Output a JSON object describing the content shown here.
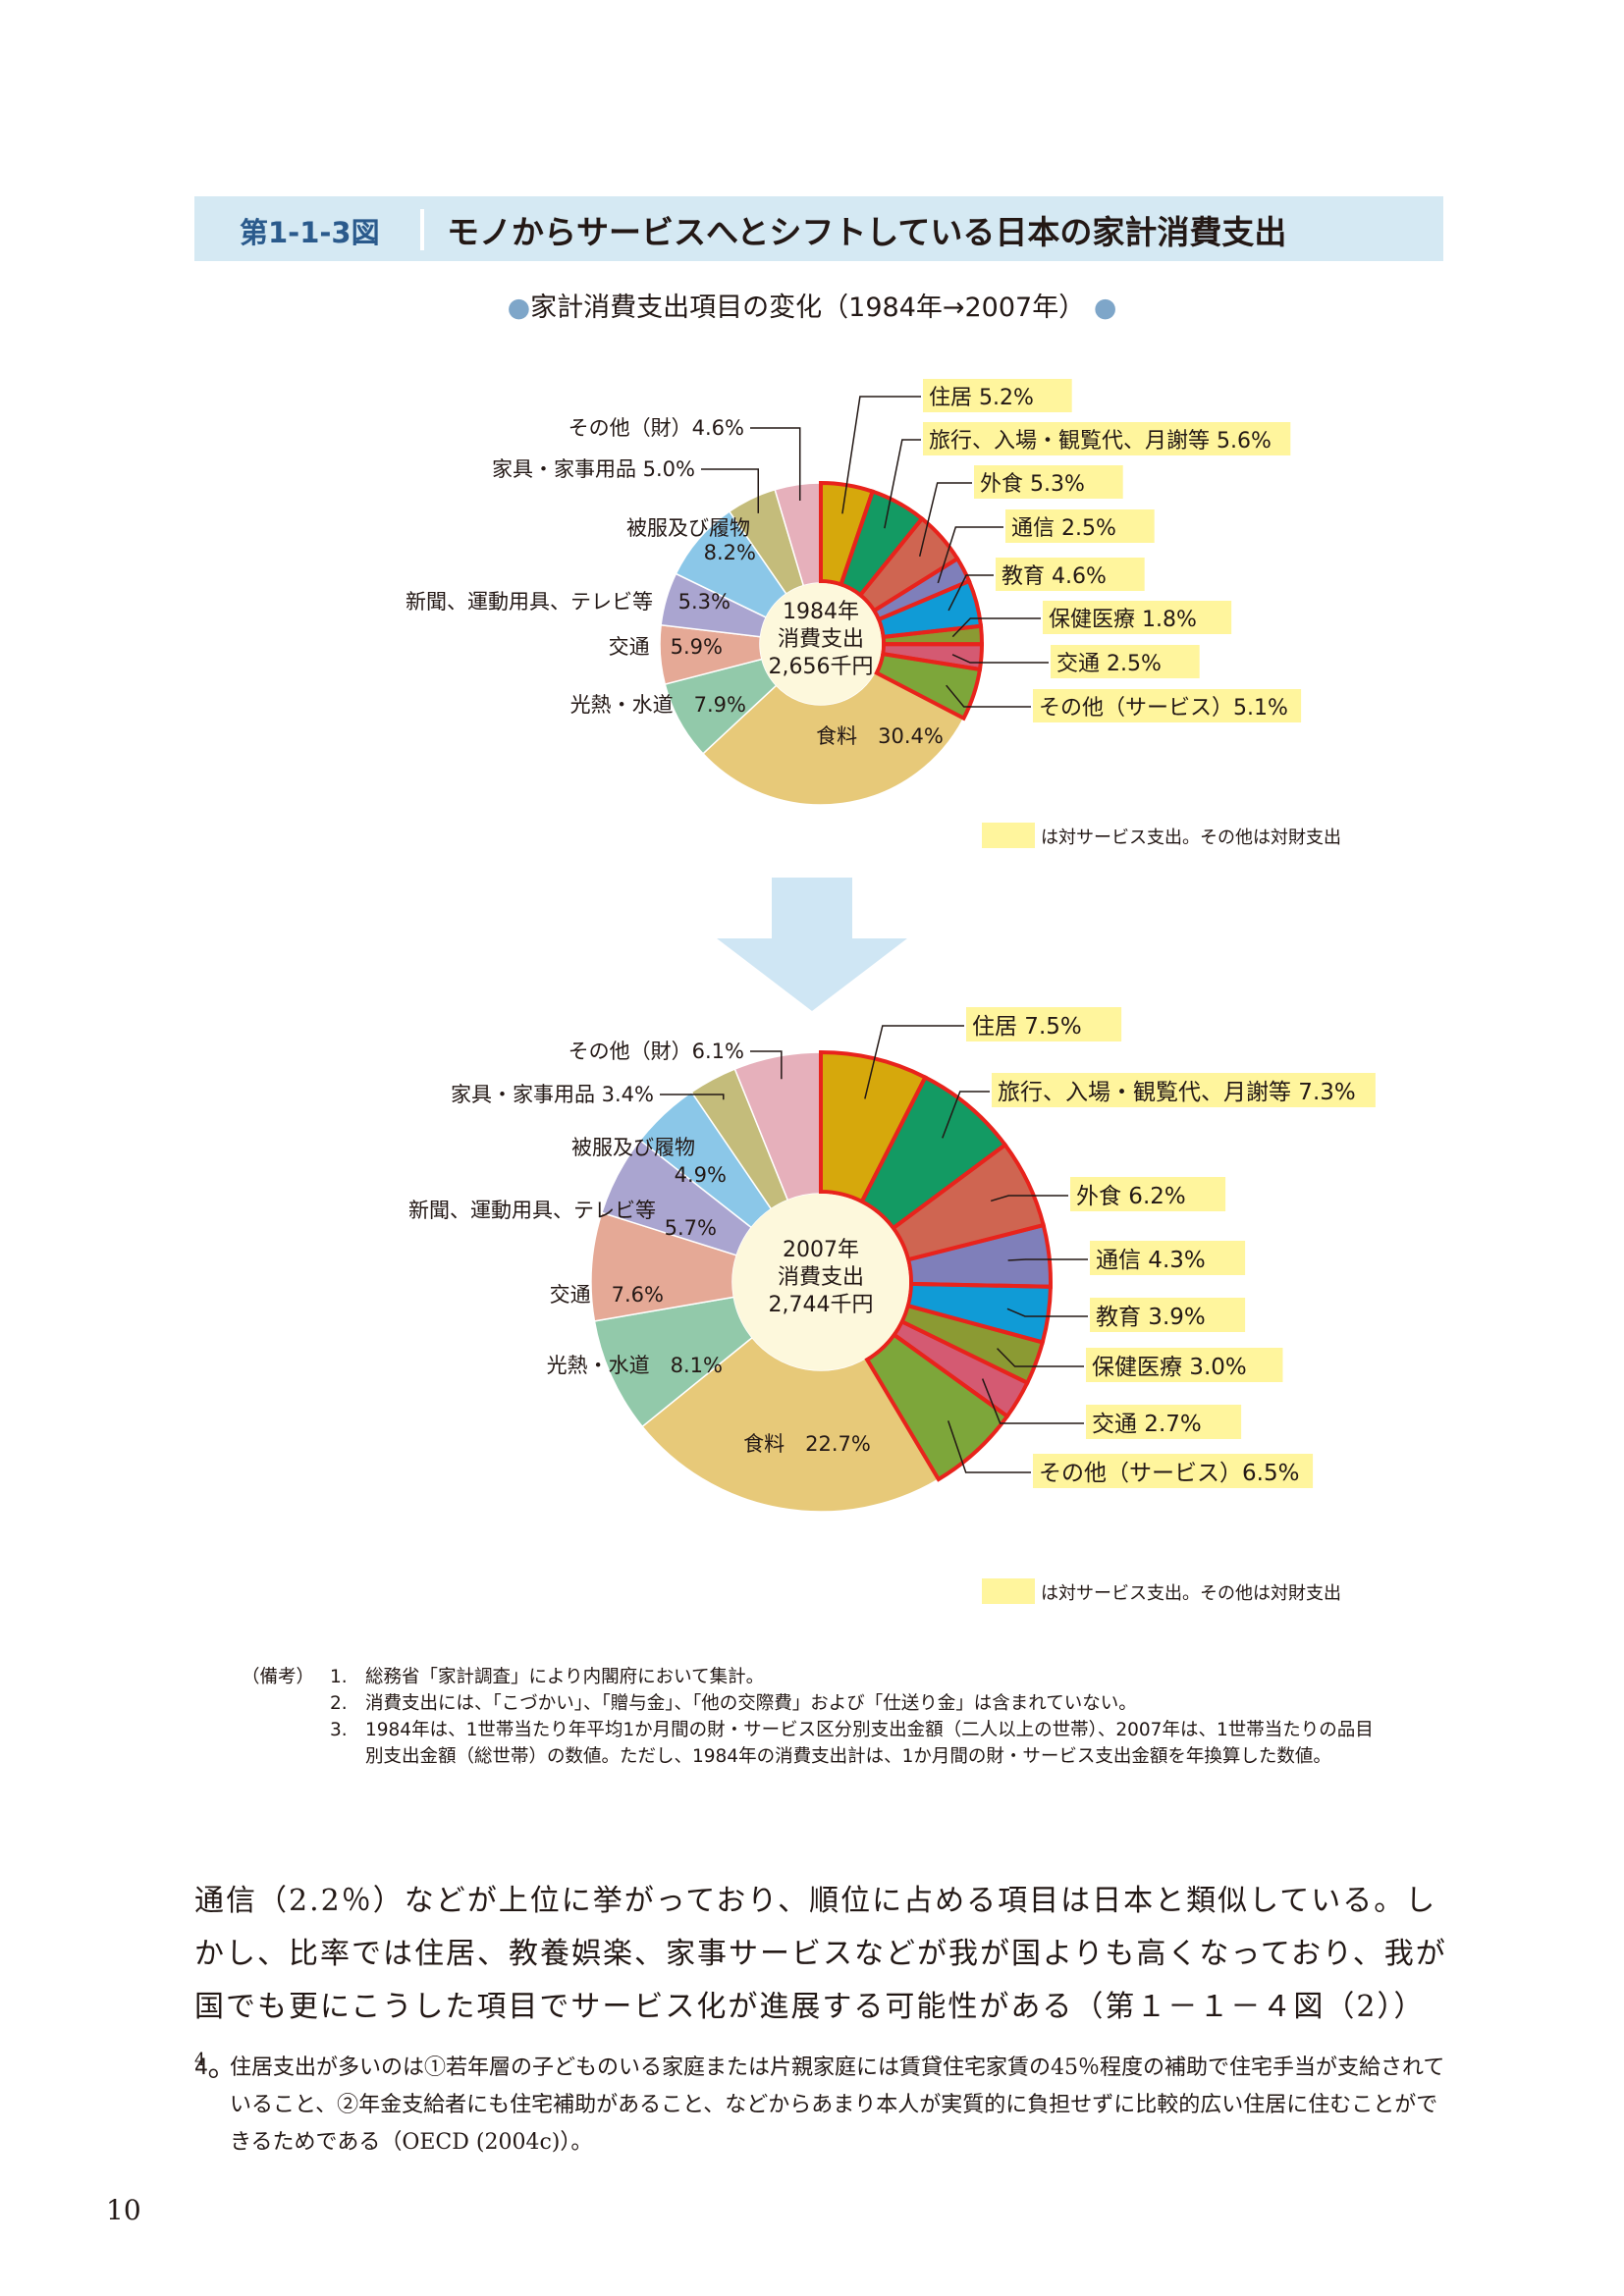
{
  "figure": {
    "label": "第1-1-3図",
    "title": "モノからサービスへとシフトしている日本の家計消費支出",
    "subtitle": "家計消費支出項目の変化（1984年→2007年）"
  },
  "legend_note": "は対サービス支出。その他は対財支出",
  "colors": {
    "service_highlight": "#fff59d",
    "service_border": "#e8231c",
    "header_band": "#d5e9f3",
    "arrow": "#cfe6f4"
  },
  "chart_data": [
    {
      "type": "pie",
      "center_label": [
        "1984年",
        "消費支出",
        "2,656千円"
      ],
      "categories": [
        "住居",
        "旅行、入場・観覧代、月謝等",
        "外食",
        "通信",
        "教育",
        "保健医療",
        "交通",
        "その他（サービス）",
        "食料",
        "光熱・水道",
        "交通",
        "新聞、運動用具、テレビ等",
        "被服及び履物",
        "家具・家事用品",
        "その他（財）"
      ],
      "values": [
        5.2,
        5.6,
        5.3,
        2.5,
        4.6,
        1.8,
        2.5,
        5.1,
        30.4,
        7.9,
        5.9,
        5.3,
        8.2,
        5.0,
        4.6
      ],
      "labels": [
        "住居 5.2%",
        "旅行、入場・観覧代、月謝等 5.6%",
        "外食 5.3%",
        "通信 2.5%",
        "教育 4.6%",
        "保健医療 1.8%",
        "交通 2.5%",
        "その他（サービス）5.1%",
        "食料　30.4%",
        "光熱・水道　7.9%",
        "交通　5.9%",
        "5.3%",
        "8.2%",
        "家具・家事用品 5.0%",
        "その他（財）4.6%"
      ],
      "extra_labels": [
        "新聞、運動用具、テレビ等",
        "被服及び履物"
      ],
      "service": [
        true,
        true,
        true,
        true,
        true,
        true,
        true,
        true,
        false,
        false,
        false,
        false,
        false,
        false,
        false
      ],
      "colors": [
        "#d6a80c",
        "#139a63",
        "#cf6551",
        "#7f7fba",
        "#109bd6",
        "#8b9a33",
        "#d45a72",
        "#7da63a",
        "#e7c979",
        "#92c9aa",
        "#e5a996",
        "#aaa5d0",
        "#8bc7e8",
        "#c4bc7b",
        "#e6b0bb"
      ]
    },
    {
      "type": "pie",
      "center_label": [
        "2007年",
        "消費支出",
        "2,744千円"
      ],
      "categories": [
        "住居",
        "旅行、入場・観覧代、月謝等",
        "外食",
        "通信",
        "教育",
        "保健医療",
        "交通",
        "その他（サービス）",
        "食料",
        "光熱・水道",
        "交通",
        "新聞、運動用具、テレビ等",
        "被服及び履物",
        "家具・家事用品",
        "その他（財）"
      ],
      "values": [
        7.5,
        7.3,
        6.2,
        4.3,
        3.9,
        3.0,
        2.7,
        6.5,
        22.7,
        8.1,
        7.6,
        5.7,
        4.9,
        3.4,
        6.1
      ],
      "labels": [
        "住居 7.5%",
        "旅行、入場・観覧代、月謝等 7.3%",
        "外食 6.2%",
        "通信 4.3%",
        "教育 3.9%",
        "保健医療 3.0%",
        "交通 2.7%",
        "その他（サービス）6.5%",
        "食料　22.7%",
        "光熱・水道　8.1%",
        "交通　7.6%",
        "5.7%",
        "4.9%",
        "家具・家事用品 3.4%",
        "その他（財）6.1%"
      ],
      "extra_labels": [
        "新聞、運動用具、テレビ等",
        "被服及び履物"
      ],
      "service": [
        true,
        true,
        true,
        true,
        true,
        true,
        true,
        true,
        false,
        false,
        false,
        false,
        false,
        false,
        false
      ],
      "colors": [
        "#d6a80c",
        "#139a63",
        "#cf6551",
        "#7f7fba",
        "#109bd6",
        "#8b9a33",
        "#d45a72",
        "#7da63a",
        "#e7c979",
        "#92c9aa",
        "#e5a996",
        "#aaa5d0",
        "#8bc7e8",
        "#c4bc7b",
        "#e6b0bb"
      ]
    }
  ],
  "notes": {
    "head": "（備考）",
    "items": [
      {
        "num": "1.",
        "text": "総務省「家計調査」により内閣府において集計。"
      },
      {
        "num": "2.",
        "text": "消費支出には、「こづかい」、「贈与金」、「他の交際費」および「仕送り金」は含まれていない。"
      },
      {
        "num": "3.",
        "text": "1984年は、1世帯当たり年平均1か月間の財・サービス区分別支出金額（二人以上の世帯）、2007年は、1世帯当たりの品目別支出金額（総世帯）の数値。ただし、1984年の消費支出計は、1か月間の財・サービス支出金額を年換算した数値。"
      }
    ]
  },
  "body": {
    "text": "通信（2.2％）などが上位に挙がっており、順位に占める項目は日本と類似している。しかし、比率では住居、教養娯楽、家事サービスなどが我が国よりも高くなっており、我が国でも更にこうした項目でサービス化が進展する可能性がある（第１－１－４図（2））",
    "sup": "4",
    "end": "。"
  },
  "footnote": {
    "num": "4",
    "text": "住居支出が多いのは①若年層の子どものいる家庭または片親家庭には賃貸住宅家賃の45％程度の補助で住宅手当が支給されていること、②年金支給者にも住宅補助があること、などからあまり本人が実質的に負担せずに比較的広い住居に住むことができるためである（OECD (2004c)）。"
  },
  "page_number": "10"
}
